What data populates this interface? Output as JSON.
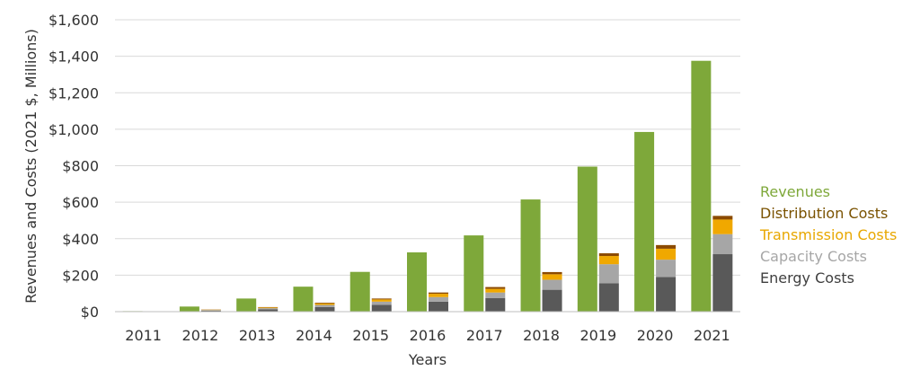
{
  "chart_data": {
    "type": "bar",
    "title": "",
    "xlabel": "Years",
    "ylabel": "Revenues and Costs (2021 $, Millions)",
    "ylim": [
      0,
      1600
    ],
    "yticks": [
      0,
      200,
      400,
      600,
      800,
      1000,
      1200,
      1400,
      1600
    ],
    "ytick_labels": [
      "$0",
      "$200",
      "$400",
      "$600",
      "$800",
      "$1,000",
      "$1,200",
      "$1,400",
      "$1,600"
    ],
    "grid": true,
    "legend_position": "right",
    "categories": [
      "2011",
      "2012",
      "2013",
      "2014",
      "2015",
      "2016",
      "2017",
      "2018",
      "2019",
      "2020",
      "2021"
    ],
    "revenues": {
      "name": "Revenues",
      "color": "#7ea83a",
      "values": [
        3,
        28,
        72,
        137,
        218,
        325,
        418,
        615,
        795,
        985,
        1375
      ]
    },
    "cost_stack": [
      {
        "name": "Energy Costs",
        "color": "#595959",
        "values": [
          1,
          6,
          13,
          25,
          38,
          55,
          75,
          120,
          155,
          190,
          315
        ]
      },
      {
        "name": "Capacity Costs",
        "color": "#a6a6a6",
        "values": [
          1,
          3,
          6,
          12,
          17,
          25,
          30,
          55,
          105,
          95,
          110
        ]
      },
      {
        "name": "Transmission Costs",
        "color": "#f0a800",
        "values": [
          0,
          2,
          4,
          8,
          12,
          18,
          20,
          30,
          45,
          60,
          80
        ]
      },
      {
        "name": "Distribution Costs",
        "color": "#8b4a00",
        "values": [
          0,
          1,
          2,
          4,
          5,
          7,
          10,
          12,
          15,
          20,
          20
        ]
      }
    ],
    "legend": [
      {
        "name": "Revenues",
        "color": "#7ea83a"
      },
      {
        "name": "Distribution Costs",
        "color": "#7a5200"
      },
      {
        "name": "Transmission Costs",
        "color": "#e8a700"
      },
      {
        "name": "Capacity Costs",
        "color": "#a6a6a6"
      },
      {
        "name": "Energy Costs",
        "color": "#3f3f3f"
      }
    ]
  }
}
